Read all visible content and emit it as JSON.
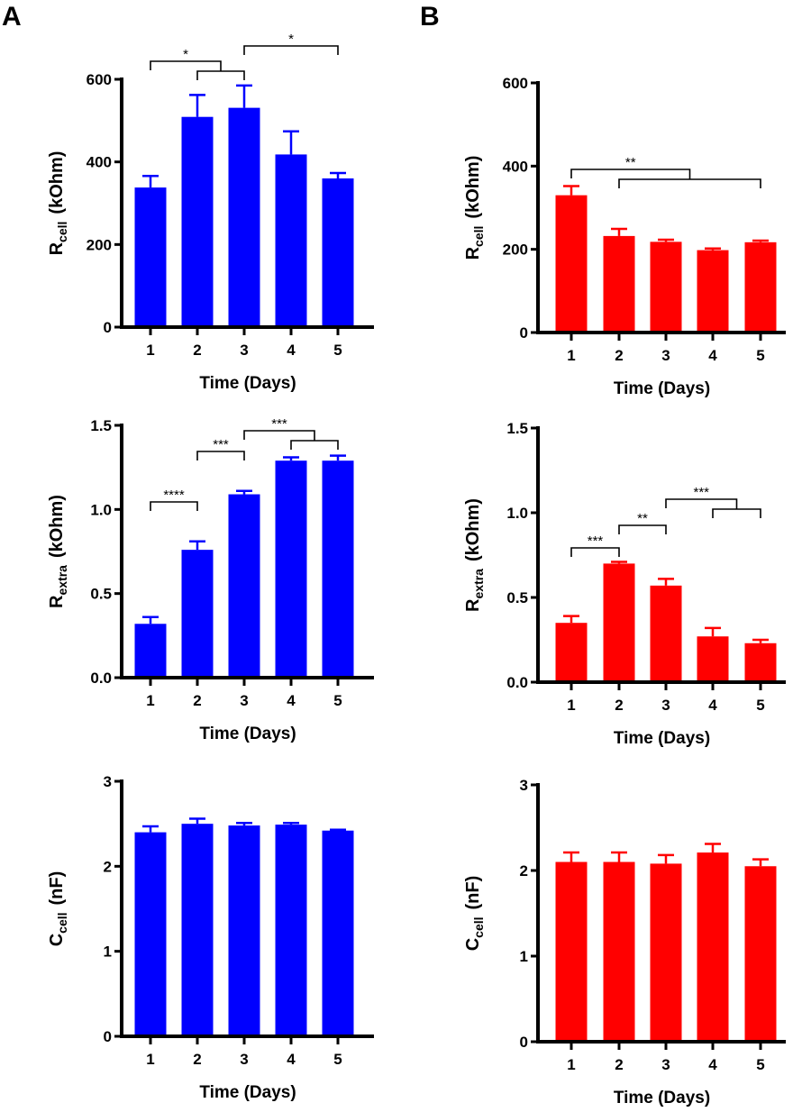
{
  "panel_labels": [
    "A",
    "B"
  ],
  "chart_data": [
    {
      "type": "bar",
      "panel": "A",
      "color": "#0000ff",
      "categories": [
        "1",
        "2",
        "3",
        "4",
        "5"
      ],
      "values": [
        338,
        509,
        531,
        418,
        360
      ],
      "errors": [
        28,
        53,
        54,
        56,
        13
      ],
      "xlabel": "Time (Days)",
      "ylabel": {
        "main": "R",
        "sub": "cell",
        "unit": "(kOhm)"
      },
      "ylim": [
        0,
        600
      ],
      "yticks": [
        "0",
        "200",
        "400",
        "600"
      ],
      "brackets": [
        {
          "groups": [
            [
              1
            ],
            [
              2,
              3
            ]
          ],
          "label": "*"
        },
        {
          "groups": [
            [
              3
            ],
            [
              5
            ]
          ],
          "label": "*"
        }
      ]
    },
    {
      "type": "bar",
      "panel": "A",
      "color": "#0000ff",
      "categories": [
        "1",
        "2",
        "3",
        "4",
        "5"
      ],
      "values": [
        0.32,
        0.76,
        1.09,
        1.29,
        1.29
      ],
      "errors": [
        0.04,
        0.05,
        0.02,
        0.02,
        0.03
      ],
      "xlabel": "Time (Days)",
      "ylabel": {
        "main": "R",
        "sub": "extra",
        "unit": "(kOhm)"
      },
      "ylim": [
        0,
        1.5
      ],
      "yticks": [
        "0.0",
        "0.5",
        "1.0",
        "1.5"
      ],
      "brackets": [
        {
          "groups": [
            [
              1
            ],
            [
              2
            ]
          ],
          "label": "****"
        },
        {
          "groups": [
            [
              2
            ],
            [
              3
            ]
          ],
          "label": "***"
        },
        {
          "groups": [
            [
              3
            ],
            [
              4,
              5
            ]
          ],
          "label": "***"
        }
      ]
    },
    {
      "type": "bar",
      "panel": "A",
      "color": "#0000ff",
      "categories": [
        "1",
        "2",
        "3",
        "4",
        "5"
      ],
      "values": [
        2.4,
        2.5,
        2.48,
        2.49,
        2.42
      ],
      "errors": [
        0.07,
        0.06,
        0.03,
        0.02,
        0.01
      ],
      "xlabel": "Time (Days)",
      "ylabel": {
        "main": "C",
        "sub": "cell",
        "unit": "(nF)"
      },
      "ylim": [
        0,
        3
      ],
      "yticks": [
        "0",
        "1",
        "2",
        "3"
      ],
      "brackets": []
    },
    {
      "type": "bar",
      "panel": "B",
      "color": "#ff0000",
      "categories": [
        "1",
        "2",
        "3",
        "4",
        "5"
      ],
      "values": [
        330,
        232,
        218,
        198,
        217
      ],
      "errors": [
        22,
        17,
        5,
        4,
        4
      ],
      "xlabel": "Time (Days)",
      "ylabel": {
        "main": "R",
        "sub": "cell",
        "unit": "(kOhm)"
      },
      "ylim": [
        0,
        600
      ],
      "yticks": [
        "0",
        "200",
        "400",
        "600"
      ],
      "brackets": [
        {
          "groups": [
            [
              1
            ],
            [
              2,
              5
            ]
          ],
          "label": "**"
        }
      ]
    },
    {
      "type": "bar",
      "panel": "B",
      "color": "#ff0000",
      "categories": [
        "1",
        "2",
        "3",
        "4",
        "5"
      ],
      "values": [
        0.35,
        0.7,
        0.57,
        0.27,
        0.23
      ],
      "errors": [
        0.04,
        0.01,
        0.04,
        0.05,
        0.02
      ],
      "xlabel": "Time (Days)",
      "ylabel": {
        "main": "R",
        "sub": "extra",
        "unit": "(kOhm)"
      },
      "ylim": [
        0,
        1.5
      ],
      "yticks": [
        "0.0",
        "0.5",
        "1.0",
        "1.5"
      ],
      "brackets": [
        {
          "groups": [
            [
              1
            ],
            [
              2
            ]
          ],
          "label": "***"
        },
        {
          "groups": [
            [
              2
            ],
            [
              3
            ]
          ],
          "label": "**"
        },
        {
          "groups": [
            [
              3
            ],
            [
              4,
              5
            ]
          ],
          "label": "***"
        }
      ]
    },
    {
      "type": "bar",
      "panel": "B",
      "color": "#ff0000",
      "categories": [
        "1",
        "2",
        "3",
        "4",
        "5"
      ],
      "values": [
        2.1,
        2.1,
        2.08,
        2.21,
        2.05
      ],
      "errors": [
        0.11,
        0.11,
        0.1,
        0.1,
        0.08
      ],
      "xlabel": "Time (Days)",
      "ylabel": {
        "main": "C",
        "sub": "cell",
        "unit": "(nF)"
      },
      "ylim": [
        0,
        3
      ],
      "yticks": [
        "0",
        "1",
        "2",
        "3"
      ],
      "brackets": []
    }
  ]
}
